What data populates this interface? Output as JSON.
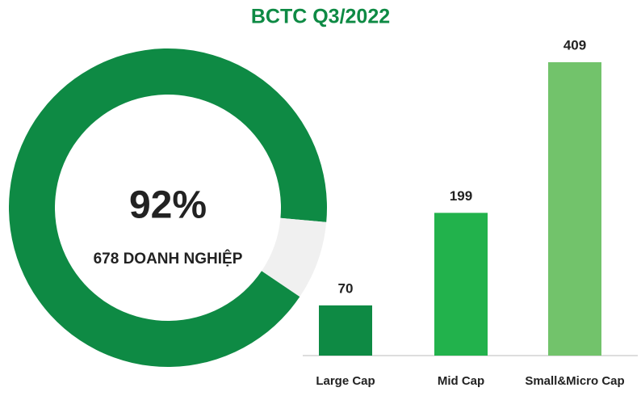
{
  "title": "BCTC Q3/2022",
  "chart_data": [
    {
      "type": "donut",
      "values": [
        92,
        8
      ],
      "value_labels": [
        "92%",
        null
      ],
      "colors": [
        "#0e8a44",
        "#f0f0f0"
      ],
      "center_text": "678 DOANH NGHIỆP"
    },
    {
      "type": "bar",
      "categories": [
        "Large Cap",
        "Mid Cap",
        "Small&Micro Cap"
      ],
      "values": [
        70,
        199,
        409
      ],
      "colors": [
        "#0e8a44",
        "#22b24c",
        "#72c36b"
      ]
    }
  ]
}
